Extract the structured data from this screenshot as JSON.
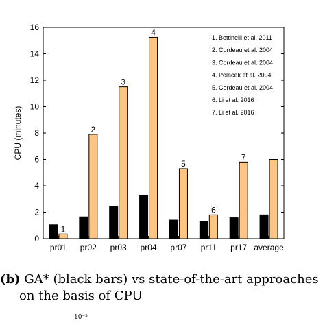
{
  "chart_data": {
    "type": "bar",
    "categories": [
      "pr01",
      "pr02",
      "pr03",
      "pr04",
      "pr07",
      "pr11",
      "pr17",
      "average"
    ],
    "series": [
      {
        "name": "GA*",
        "color": "#000000",
        "values": [
          1.05,
          1.65,
          2.45,
          3.3,
          1.4,
          1.3,
          1.58,
          1.8
        ]
      },
      {
        "name": "state-of-the-art",
        "color": "#fdc583",
        "values": [
          0.35,
          7.9,
          11.5,
          15.25,
          5.3,
          1.8,
          5.8,
          6.0
        ]
      }
    ],
    "bar_labels": [
      "1",
      "2",
      "3",
      "4",
      "5",
      "6",
      "7",
      ""
    ],
    "ylabel": "CPU (minutes)",
    "xlabel": "",
    "ylim": [
      0,
      16
    ],
    "yticks": [
      "0",
      "2",
      "4",
      "6",
      "8",
      "10",
      "12",
      "14",
      "16"
    ],
    "legend": [
      "1. Bettinelli et al. 2011",
      "2. Cordeau et al. 2004",
      "3. Cordeau et al. 2004",
      "4. Polacek et al. 2004",
      "5. Cordeau et al. 2004",
      "6. Li et al. 2016",
      "7. Li et al. 2016"
    ],
    "legend_position": "top-right",
    "grid": false
  },
  "caption": {
    "label": "(b)",
    "line1": " GA* (black bars) vs state-of-the-art approaches",
    "line2": "on the basis of CPU"
  },
  "partial_text": "10⁻³"
}
